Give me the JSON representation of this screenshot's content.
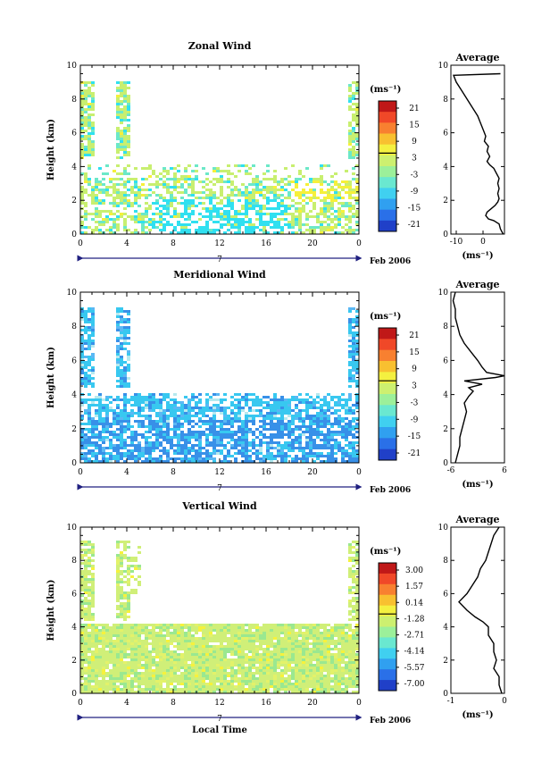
{
  "chart_data": [
    {
      "type": "heatmap",
      "title": "Zonal Wind",
      "ylabel": "Height (km)",
      "xticks": [
        "0",
        "4",
        "8",
        "12",
        "16",
        "20",
        "0"
      ],
      "xlim": [
        0,
        24
      ],
      "yticks": [
        "0",
        "2",
        "4",
        "6",
        "8",
        "10"
      ],
      "ylim": [
        0,
        10
      ],
      "date_label": "7",
      "month_label": "Feb 2006",
      "colorbar": {
        "unit": "(ms⁻¹)",
        "ticks": [
          "21",
          "15",
          "9",
          "3",
          "-3",
          "-9",
          "-15",
          "-21"
        ],
        "range": [
          -24,
          24
        ]
      },
      "colors": {
        "main": "#c8ef70",
        "secondary": "#6ce8c8",
        "accent": "#30e0f0",
        "warm": "#f6f03a"
      },
      "profile": {
        "title": "Average",
        "xticks": [
          "-10",
          "0"
        ],
        "xlim": [
          -12,
          8
        ],
        "yticks": [
          "0",
          "2",
          "4",
          "6",
          "8",
          "10"
        ],
        "unit": "(ms⁻¹)",
        "points": [
          [
            7.5,
            0
          ],
          [
            6.5,
            0.3
          ],
          [
            6,
            0.6
          ],
          [
            4,
            0.8
          ],
          [
            2,
            0.9
          ],
          [
            1,
            1.1
          ],
          [
            1.5,
            1.3
          ],
          [
            3,
            1.5
          ],
          [
            4.5,
            1.7
          ],
          [
            5.5,
            1.9
          ],
          [
            6,
            2.1
          ],
          [
            5.5,
            2.4
          ],
          [
            6,
            2.7
          ],
          [
            5.5,
            3
          ],
          [
            6,
            3.3
          ],
          [
            5,
            3.6
          ],
          [
            4,
            3.9
          ],
          [
            2.5,
            4.1
          ],
          [
            1.5,
            4.3
          ],
          [
            2.5,
            4.6
          ],
          [
            1.5,
            4.9
          ],
          [
            2,
            5.2
          ],
          [
            0.5,
            5.5
          ],
          [
            1,
            5.8
          ],
          [
            0,
            6.2
          ],
          [
            -1,
            6.6
          ],
          [
            -2,
            7
          ],
          [
            -4,
            7.5
          ],
          [
            -6,
            8
          ],
          [
            -8,
            8.5
          ],
          [
            -10,
            9
          ],
          [
            -11,
            9.4
          ],
          [
            6.5,
            9.5
          ]
        ]
      }
    },
    {
      "type": "heatmap",
      "title": "Meridional Wind",
      "ylabel": "Height (km)",
      "xticks": [
        "0",
        "4",
        "8",
        "12",
        "16",
        "20",
        "0"
      ],
      "xlim": [
        0,
        24
      ],
      "yticks": [
        "0",
        "2",
        "4",
        "6",
        "8",
        "10"
      ],
      "ylim": [
        0,
        10
      ],
      "date_label": "7",
      "month_label": "Feb 2006",
      "colorbar": {
        "unit": "(ms⁻¹)",
        "ticks": [
          "21",
          "15",
          "9",
          "3",
          "-3",
          "-9",
          "-15",
          "-21"
        ],
        "range": [
          -24,
          24
        ]
      },
      "colors": {
        "main": "#38c8f0",
        "secondary": "#3890e8",
        "accent": "#5ab8f4",
        "warm": "#b6e9ee"
      },
      "profile": {
        "title": "Average",
        "xticks": [
          "-6",
          "6"
        ],
        "xlim": [
          -6,
          6
        ],
        "yticks": [
          "0",
          "2",
          "4",
          "6",
          "8",
          "10"
        ],
        "unit": "(ms⁻¹)",
        "points": [
          [
            -5,
            0
          ],
          [
            -4.5,
            0.5
          ],
          [
            -4,
            1
          ],
          [
            -4,
            1.5
          ],
          [
            -3.5,
            2
          ],
          [
            -3,
            2.5
          ],
          [
            -2.5,
            3
          ],
          [
            -3,
            3.5
          ],
          [
            -2,
            3.9
          ],
          [
            -1,
            4.2
          ],
          [
            -2,
            4.4
          ],
          [
            1,
            4.6
          ],
          [
            -3,
            4.8
          ],
          [
            4,
            5
          ],
          [
            6,
            5.1
          ],
          [
            2,
            5.3
          ],
          [
            1,
            5.6
          ],
          [
            0,
            6
          ],
          [
            -1.5,
            6.5
          ],
          [
            -3,
            7
          ],
          [
            -4,
            7.5
          ],
          [
            -4.5,
            8
          ],
          [
            -5,
            8.5
          ],
          [
            -5,
            9
          ],
          [
            -5.5,
            9.5
          ],
          [
            -5,
            10
          ]
        ]
      }
    },
    {
      "type": "heatmap",
      "title": "Vertical Wind",
      "ylabel": "Height (km)",
      "xlabel": "Local Time",
      "xticks": [
        "0",
        "4",
        "8",
        "12",
        "16",
        "20",
        "0"
      ],
      "xlim": [
        0,
        24
      ],
      "yticks": [
        "0",
        "2",
        "4",
        "6",
        "8",
        "10"
      ],
      "ylim": [
        0,
        10
      ],
      "date_label": "7",
      "month_label": "Feb 2006",
      "colorbar": {
        "unit": "(ms⁻¹)",
        "ticks": [
          "3.00",
          "1.57",
          "0.14",
          "-1.28",
          "-2.71",
          "-4.14",
          "-5.57",
          "-7.00"
        ],
        "range": [
          -8,
          4
        ]
      },
      "colors": {
        "main": "#d0ef78",
        "secondary": "#9ae890",
        "accent": "#e3f26a",
        "warm": "#f6f23c"
      },
      "profile": {
        "title": "Average",
        "xticks": [
          "-1",
          "0"
        ],
        "xlim": [
          -1,
          0
        ],
        "yticks": [
          "0",
          "2",
          "4",
          "6",
          "8",
          "10"
        ],
        "unit": "(ms⁻¹)",
        "points": [
          [
            -0.05,
            0
          ],
          [
            -0.1,
            0.5
          ],
          [
            -0.1,
            1
          ],
          [
            -0.2,
            1.5
          ],
          [
            -0.15,
            2
          ],
          [
            -0.2,
            2.5
          ],
          [
            -0.2,
            3
          ],
          [
            -0.3,
            3.5
          ],
          [
            -0.3,
            4
          ],
          [
            -0.4,
            4.3
          ],
          [
            -0.55,
            4.6
          ],
          [
            -0.7,
            5
          ],
          [
            -0.85,
            5.5
          ],
          [
            -0.7,
            6
          ],
          [
            -0.6,
            6.5
          ],
          [
            -0.5,
            7
          ],
          [
            -0.45,
            7.5
          ],
          [
            -0.35,
            8
          ],
          [
            -0.3,
            8.5
          ],
          [
            -0.25,
            9
          ],
          [
            -0.2,
            9.5
          ],
          [
            -0.1,
            10
          ]
        ]
      }
    }
  ]
}
